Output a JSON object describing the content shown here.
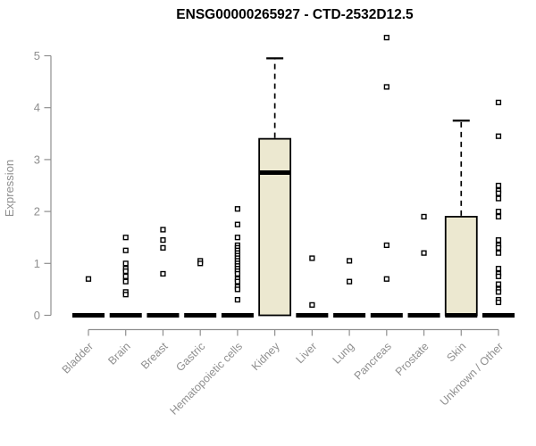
{
  "chart_data": {
    "type": "boxplot",
    "title": "ENSG00000265927 - CTD-2532D12.5",
    "ylabel": "Expression",
    "xlabel": "",
    "legend": "none",
    "grid": false,
    "y_axis": {
      "range": [
        0,
        5
      ],
      "ticks": [
        0,
        1,
        2,
        3,
        4,
        5
      ]
    },
    "colors": {
      "box_fill": "#ece8d0",
      "box_stroke": "#000000",
      "axis": "#8f8f8f",
      "title": "#000000",
      "background": "#ffffff",
      "outlier_fill": "#ffffff"
    },
    "groups": [
      {
        "label": "Bladder",
        "median": 0,
        "q1": 0,
        "q3": 0,
        "whisker_low": 0,
        "whisker_high": 0,
        "outliers": [
          0.7
        ]
      },
      {
        "label": "Brain",
        "median": 0,
        "q1": 0,
        "q3": 0,
        "whisker_low": 0,
        "whisker_high": 0,
        "outliers": [
          1.5,
          1.25,
          1.0,
          0.9,
          0.85,
          0.75,
          0.65,
          0.45,
          0.4
        ]
      },
      {
        "label": "Breast",
        "median": 0,
        "q1": 0,
        "q3": 0,
        "whisker_low": 0,
        "whisker_high": 0,
        "outliers": [
          1.65,
          1.45,
          1.3,
          0.8
        ]
      },
      {
        "label": "Gastric",
        "median": 0,
        "q1": 0,
        "q3": 0,
        "whisker_low": 0,
        "whisker_high": 0,
        "outliers": [
          1.05,
          1.0
        ]
      },
      {
        "label": "Hematopoietic cells",
        "median": 0,
        "q1": 0,
        "q3": 0,
        "whisker_low": 0,
        "whisker_high": 0,
        "outliers": [
          2.05,
          1.75,
          1.5,
          1.35,
          1.3,
          1.25,
          1.2,
          1.15,
          1.1,
          1.05,
          1.0,
          0.95,
          0.9,
          0.85,
          0.8,
          0.7,
          0.65,
          0.55,
          0.5,
          0.3
        ]
      },
      {
        "label": "Kidney",
        "median": 2.75,
        "q1": 0,
        "q3": 3.4,
        "whisker_low": 0,
        "whisker_high": 4.95,
        "outliers": []
      },
      {
        "label": "Liver",
        "median": 0,
        "q1": 0,
        "q3": 0,
        "whisker_low": 0,
        "whisker_high": 0,
        "outliers": [
          1.1,
          0.2
        ]
      },
      {
        "label": "Lung",
        "median": 0,
        "q1": 0,
        "q3": 0,
        "whisker_low": 0,
        "whisker_high": 0,
        "outliers": [
          1.05,
          0.65
        ]
      },
      {
        "label": "Pancreas",
        "median": 0,
        "q1": 0,
        "q3": 0,
        "whisker_low": 0,
        "whisker_high": 0,
        "outliers": [
          5.35,
          4.4,
          1.35,
          0.7
        ]
      },
      {
        "label": "Prostate",
        "median": 0,
        "q1": 0,
        "q3": 0,
        "whisker_low": 0,
        "whisker_high": 0,
        "outliers": [
          1.9,
          1.2
        ]
      },
      {
        "label": "Skin",
        "median": 0,
        "q1": 0,
        "q3": 1.9,
        "whisker_low": 0,
        "whisker_high": 3.75,
        "outliers": []
      },
      {
        "label": "Unknown / Other",
        "median": 0,
        "q1": 0,
        "q3": 0,
        "whisker_low": 0,
        "whisker_high": 0,
        "outliers": [
          4.1,
          3.45,
          2.5,
          2.4,
          2.35,
          2.25,
          2.0,
          1.9,
          1.45,
          1.35,
          1.3,
          1.2,
          0.9,
          0.8,
          0.75,
          0.6,
          0.5,
          0.45,
          0.3,
          0.25
        ]
      }
    ]
  }
}
